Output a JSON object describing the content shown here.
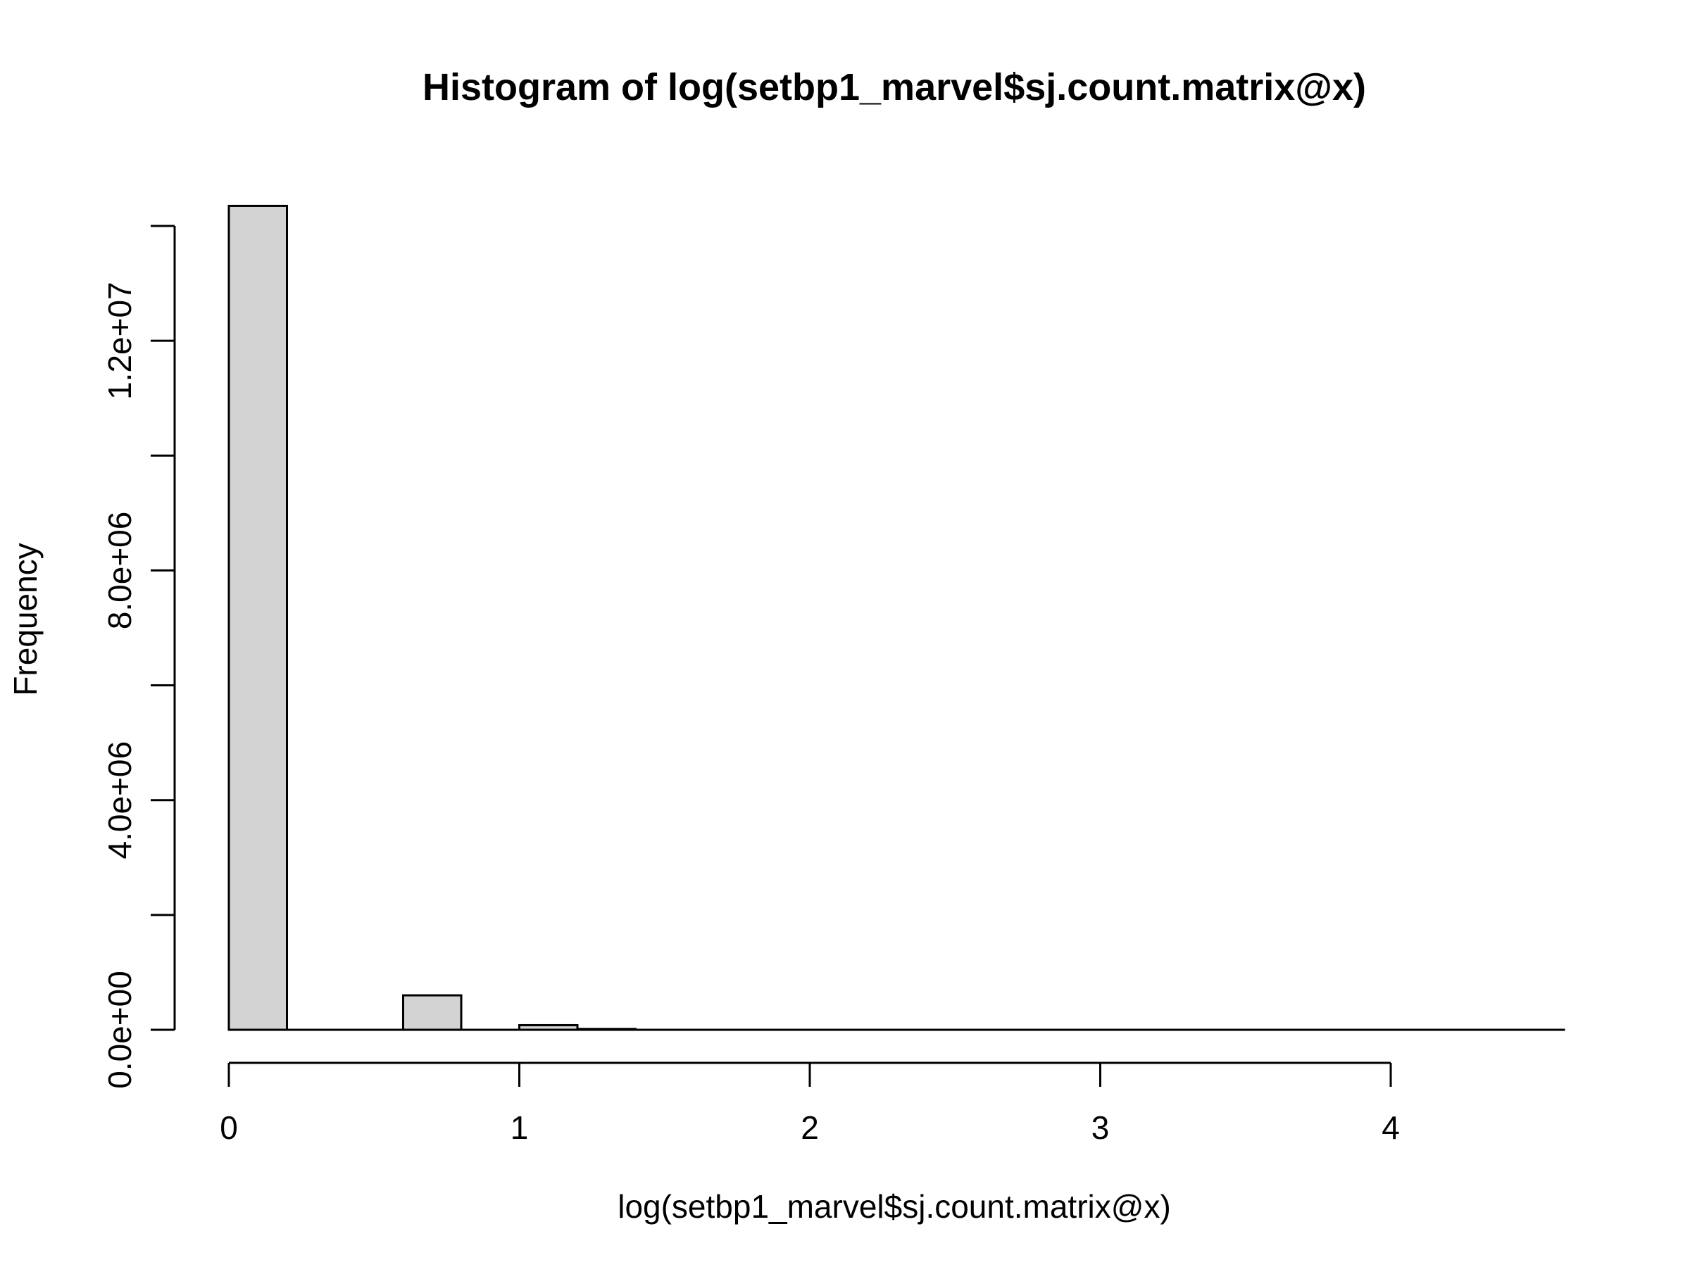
{
  "chart_data": {
    "type": "bar",
    "title": "Histogram of log(setbp1_marvel$sj.count.matrix@x)",
    "xlabel": "log(setbp1_marvel$sj.count.matrix@x)",
    "ylabel": "Frequency",
    "bin_width": 0.2,
    "bins": [
      {
        "start": 0.0,
        "end": 0.2,
        "value": 14350000
      },
      {
        "start": 0.2,
        "end": 0.4,
        "value": 0
      },
      {
        "start": 0.4,
        "end": 0.6,
        "value": 0
      },
      {
        "start": 0.6,
        "end": 0.8,
        "value": 600000
      },
      {
        "start": 0.8,
        "end": 1.0,
        "value": 0
      },
      {
        "start": 1.0,
        "end": 1.2,
        "value": 80000
      },
      {
        "start": 1.2,
        "end": 1.4,
        "value": 15000
      },
      {
        "start": 1.4,
        "end": 1.6,
        "value": 0
      },
      {
        "start": 1.6,
        "end": 1.8,
        "value": 4000
      },
      {
        "start": 1.8,
        "end": 2.0,
        "value": 1500
      },
      {
        "start": 2.0,
        "end": 2.2,
        "value": 800
      },
      {
        "start": 2.2,
        "end": 2.4,
        "value": 400
      },
      {
        "start": 2.4,
        "end": 2.6,
        "value": 200
      },
      {
        "start": 2.6,
        "end": 2.8,
        "value": 100
      },
      {
        "start": 2.8,
        "end": 3.0,
        "value": 80
      },
      {
        "start": 3.0,
        "end": 3.2,
        "value": 40
      },
      {
        "start": 3.2,
        "end": 3.4,
        "value": 20
      },
      {
        "start": 3.4,
        "end": 3.6,
        "value": 10
      },
      {
        "start": 3.6,
        "end": 3.8,
        "value": 5
      },
      {
        "start": 3.8,
        "end": 4.0,
        "value": 3
      },
      {
        "start": 4.0,
        "end": 4.2,
        "value": 2
      },
      {
        "start": 4.2,
        "end": 4.4,
        "value": 1
      },
      {
        "start": 4.4,
        "end": 4.6,
        "value": 1
      }
    ],
    "xlim": [
      0,
      4.6
    ],
    "ylim": [
      0,
      14000000
    ],
    "x_ticks": [
      0,
      1,
      2,
      3,
      4
    ],
    "x_tick_labels": [
      "0",
      "1",
      "2",
      "3",
      "4"
    ],
    "y_ticks": [
      0,
      2000000,
      4000000,
      6000000,
      8000000,
      10000000,
      12000000,
      14000000
    ],
    "y_tick_labels": [
      "0.0e+00",
      "",
      "4.0e+06",
      "",
      "8.0e+06",
      "",
      "1.2e+07",
      ""
    ],
    "bar_fill": "#d3d3d3",
    "bar_stroke": "#000000",
    "grid": false
  }
}
